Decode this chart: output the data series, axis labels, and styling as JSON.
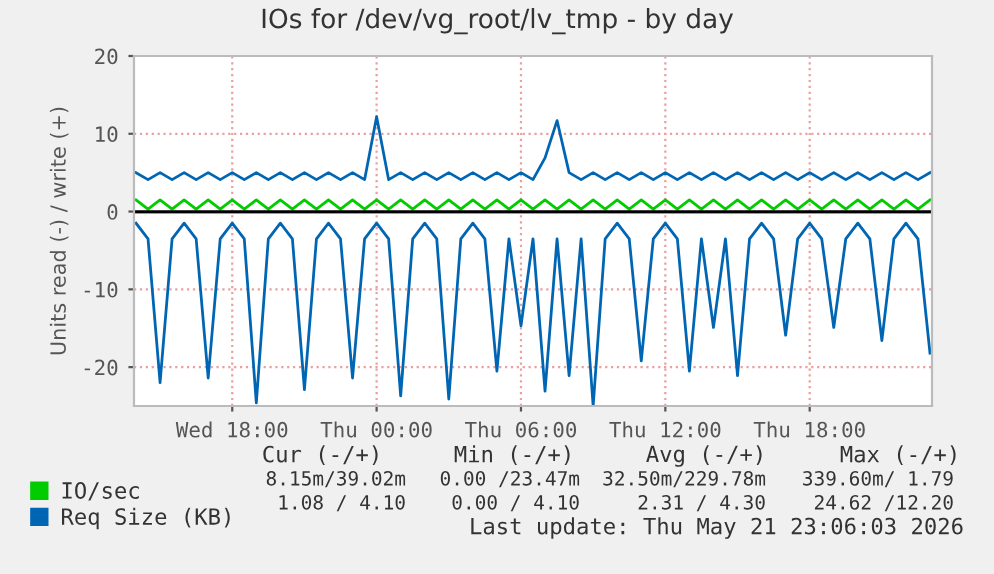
{
  "chart_data": {
    "type": "line",
    "title": "IOs for /dev/vg_root/lv_tmp - by day",
    "ylabel": "Units read (-) / write (+)",
    "x": [
      "2026-05-20T14:00",
      "2026-05-20T14:30",
      "2026-05-20T15:00",
      "2026-05-20T15:30",
      "2026-05-20T16:00",
      "2026-05-20T16:30",
      "2026-05-20T17:00",
      "2026-05-20T17:30",
      "2026-05-20T18:00",
      "2026-05-20T18:30",
      "2026-05-20T19:00",
      "2026-05-20T19:30",
      "2026-05-20T20:00",
      "2026-05-20T20:30",
      "2026-05-20T21:00",
      "2026-05-20T21:30",
      "2026-05-20T22:00",
      "2026-05-20T22:30",
      "2026-05-20T23:00",
      "2026-05-20T23:30",
      "2026-05-21T00:00",
      "2026-05-21T00:30",
      "2026-05-21T01:00",
      "2026-05-21T01:30",
      "2026-05-21T02:00",
      "2026-05-21T02:30",
      "2026-05-21T03:00",
      "2026-05-21T03:30",
      "2026-05-21T04:00",
      "2026-05-21T04:30",
      "2026-05-21T05:00",
      "2026-05-21T05:30",
      "2026-05-21T06:00",
      "2026-05-21T06:30",
      "2026-05-21T07:00",
      "2026-05-21T07:30",
      "2026-05-21T08:00",
      "2026-05-21T08:30",
      "2026-05-21T09:00",
      "2026-05-21T09:30",
      "2026-05-21T10:00",
      "2026-05-21T10:30",
      "2026-05-21T11:00",
      "2026-05-21T11:30",
      "2026-05-21T12:00",
      "2026-05-21T12:30",
      "2026-05-21T13:00",
      "2026-05-21T13:30",
      "2026-05-21T14:00",
      "2026-05-21T14:30",
      "2026-05-21T15:00",
      "2026-05-21T15:30",
      "2026-05-21T16:00",
      "2026-05-21T16:30",
      "2026-05-21T17:00",
      "2026-05-21T17:30",
      "2026-05-21T18:00",
      "2026-05-21T18:30",
      "2026-05-21T19:00",
      "2026-05-21T19:30",
      "2026-05-21T20:00",
      "2026-05-21T20:30",
      "2026-05-21T21:00",
      "2026-05-21T21:30",
      "2026-05-21T22:00",
      "2026-05-21T22:30",
      "2026-05-21T23:00"
    ],
    "series": [
      {
        "name": "IO/sec",
        "color": "#00cc00",
        "values": [
          1.5,
          0.3,
          1.5,
          0.3,
          1.5,
          0.3,
          1.5,
          0.3,
          1.5,
          0.3,
          1.5,
          0.3,
          1.5,
          0.3,
          1.5,
          0.3,
          1.5,
          0.3,
          1.5,
          0.3,
          1.5,
          0.3,
          1.5,
          0.3,
          1.5,
          0.3,
          1.5,
          0.3,
          1.5,
          0.3,
          1.5,
          0.3,
          1.5,
          0.3,
          1.5,
          0.3,
          1.5,
          0.3,
          1.5,
          0.3,
          1.5,
          0.3,
          1.5,
          0.3,
          1.5,
          0.3,
          1.5,
          0.3,
          1.5,
          0.3,
          1.5,
          0.3,
          1.5,
          0.3,
          1.5,
          0.3,
          1.5,
          0.3,
          1.5,
          0.3,
          1.5,
          0.3,
          1.5,
          0.3,
          1.5,
          0.3,
          1.5
        ]
      },
      {
        "color": "#00cc00",
        "values": [
          -0.1,
          -0.1,
          -0.1,
          -0.1,
          -0.1,
          -0.1,
          -0.1,
          -0.1,
          -0.1,
          -0.1,
          -0.1,
          -0.1,
          -0.1,
          -0.1,
          -0.1,
          -0.1,
          -0.1,
          -0.1,
          -0.1,
          -0.1,
          -0.1,
          -0.1,
          -0.1,
          -0.1,
          -0.1,
          -0.1,
          -0.1,
          -0.1,
          -0.1,
          -0.1,
          -0.1,
          -0.1,
          -0.1,
          -0.1,
          -0.1,
          -0.1,
          -0.1,
          -0.1,
          -0.1,
          -0.1,
          -0.1,
          -0.1,
          -0.1,
          -0.1,
          -0.1,
          -0.1,
          -0.1,
          -0.1,
          -0.1,
          -0.1,
          -0.1,
          -0.1,
          -0.1,
          -0.1,
          -0.1,
          -0.1,
          -0.1,
          -0.1,
          -0.1,
          -0.1,
          -0.1,
          -0.1,
          -0.1,
          -0.1,
          -0.1,
          -0.1,
          -0.1
        ]
      },
      {
        "name": "Req Size (KB)",
        "color": "#0066b3",
        "values": [
          5.0,
          4.1,
          5.0,
          4.1,
          5.0,
          4.1,
          5.0,
          4.1,
          5.0,
          4.1,
          5.0,
          4.1,
          5.0,
          4.1,
          5.0,
          4.1,
          5.0,
          4.1,
          5.0,
          4.1,
          12.2,
          4.1,
          5.0,
          4.1,
          5.0,
          4.1,
          5.0,
          4.1,
          5.0,
          4.1,
          5.0,
          4.1,
          5.0,
          4.1,
          6.9,
          11.7,
          5.0,
          4.1,
          5.0,
          4.1,
          5.0,
          4.1,
          5.0,
          4.1,
          5.0,
          4.1,
          5.0,
          4.1,
          5.0,
          4.1,
          5.0,
          4.1,
          5.0,
          4.1,
          5.0,
          4.1,
          5.0,
          4.1,
          5.0,
          4.1,
          5.0,
          4.1,
          5.0,
          4.1,
          5.0,
          4.1,
          5.0
        ]
      },
      {
        "color": "#0066b3",
        "values": [
          -1.5,
          -3.5,
          -22.0,
          -3.5,
          -1.5,
          -3.5,
          -21.4,
          -3.5,
          -1.5,
          -3.5,
          -24.6,
          -3.5,
          -1.5,
          -3.5,
          -22.9,
          -3.5,
          -1.5,
          -3.5,
          -21.4,
          -3.5,
          -1.5,
          -3.5,
          -23.7,
          -3.5,
          -1.5,
          -3.5,
          -24.1,
          -3.5,
          -1.5,
          -3.5,
          -20.5,
          -3.5,
          -14.7,
          -3.5,
          -23.1,
          -3.5,
          -21.1,
          -3.5,
          -25.0,
          -3.5,
          -1.5,
          -3.5,
          -19.2,
          -3.5,
          -1.5,
          -3.5,
          -20.5,
          -3.5,
          -14.9,
          -3.5,
          -21.1,
          -3.5,
          -1.5,
          -3.5,
          -15.9,
          -3.5,
          -1.5,
          -3.5,
          -14.9,
          -3.5,
          -1.5,
          -3.5,
          -16.6,
          -3.5,
          -1.5,
          -3.5,
          -18.2
        ]
      }
    ],
    "xlim": [
      "2026-05-20T13:55",
      "2026-05-21T23:05"
    ],
    "xticks": [
      {
        "value": "2026-05-20T18:00",
        "label": "Wed 18:00"
      },
      {
        "value": "2026-05-21T00:00",
        "label": "Thu 00:00"
      },
      {
        "value": "2026-05-21T06:00",
        "label": "Thu 06:00"
      },
      {
        "value": "2026-05-21T12:00",
        "label": "Thu 12:00"
      },
      {
        "value": "2026-05-21T18:00",
        "label": "Thu 18:00"
      }
    ],
    "ylim": [
      -25,
      20
    ],
    "yticks": [
      -20,
      -10,
      0,
      10,
      20
    ],
    "ref_lines": [
      {
        "axis": "y",
        "value": 0,
        "color": "#000000"
      }
    ],
    "grid": true,
    "legend": "bottom",
    "line_style": "solid",
    "marker": "none",
    "annotations": [
      "Cur (-/+)",
      "Min (-/+)",
      "Avg (-/+)",
      "Max (-/+)",
      "8.15m/39.02m",
      "0.00 /23.47m",
      "32.50m/229.78m",
      "339.60m/ 1.79",
      "1.08 / 4.10",
      "0.00 / 4.10",
      "2.31 / 4.30",
      "24.62 /12.20",
      "Last update: Thu May 21 23:06:03 2026"
    ]
  }
}
